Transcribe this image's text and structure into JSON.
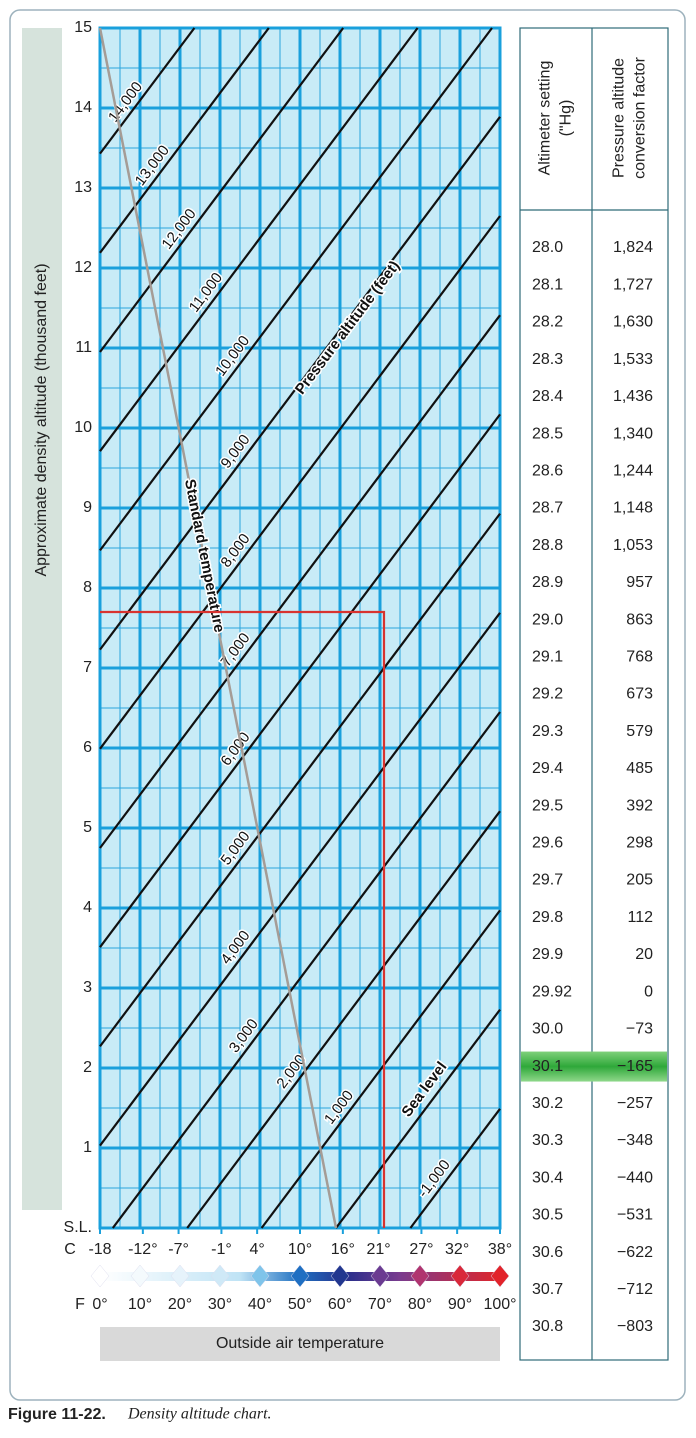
{
  "chart_data": {
    "type": "line",
    "ylabel": "Approximate density altitude (thousand feet)",
    "xlabel": "Outside air temperature",
    "x_unit": "F",
    "x2_unit": "C",
    "xlim": [
      0,
      100
    ],
    "xticks": [
      {
        "value": 0,
        "label": "0°"
      },
      {
        "value": 10,
        "label": "10°"
      },
      {
        "value": 20,
        "label": "20°"
      },
      {
        "value": 30,
        "label": "30°"
      },
      {
        "value": 40,
        "label": "40°"
      },
      {
        "value": 50,
        "label": "50°"
      },
      {
        "value": 60,
        "label": "60°"
      },
      {
        "value": 70,
        "label": "70°"
      },
      {
        "value": 80,
        "label": "80°"
      },
      {
        "value": 90,
        "label": "90°"
      },
      {
        "value": 100,
        "label": "100°"
      }
    ],
    "x2lim": [
      -18,
      38
    ],
    "x2ticks": [
      {
        "value": -18,
        "label": "-18"
      },
      {
        "value": -12,
        "label": "-12°"
      },
      {
        "value": -7,
        "label": "-7°"
      },
      {
        "value": -1,
        "label": "-1°"
      },
      {
        "value": 4,
        "label": "4°"
      },
      {
        "value": 10,
        "label": "10°"
      },
      {
        "value": 16,
        "label": "16°"
      },
      {
        "value": 21,
        "label": "21°"
      },
      {
        "value": 27,
        "label": "27°"
      },
      {
        "value": 32,
        "label": "32°"
      },
      {
        "value": 38,
        "label": "38°"
      }
    ],
    "ylim": [
      0,
      15
    ],
    "yticks": [
      {
        "value": 0,
        "label": "S.L."
      },
      1,
      2,
      3,
      4,
      5,
      6,
      7,
      8,
      9,
      10,
      11,
      12,
      13,
      14,
      15
    ],
    "grid": true,
    "annotations": [
      "Pressure altitude (feet)"
    ],
    "series": [
      {
        "name": "Sea level",
        "emphasis": true,
        "color": "#111111",
        "x": [
          59,
          100
        ],
        "values": [
          0,
          2.73
        ]
      },
      {
        "name": "-1,000",
        "color": "#111111",
        "x": [
          77.6,
          100
        ],
        "values": [
          0,
          1.49
        ]
      },
      {
        "name": "1,000",
        "color": "#111111",
        "x": [
          40.4,
          100
        ],
        "values": [
          0,
          3.97
        ]
      },
      {
        "name": "2,000",
        "color": "#111111",
        "x": [
          21.8,
          100
        ],
        "values": [
          0,
          5.21
        ]
      },
      {
        "name": "3,000",
        "color": "#111111",
        "x": [
          3.2,
          100
        ],
        "values": [
          0,
          6.45
        ]
      },
      {
        "name": "4,000",
        "color": "#111111",
        "x": [
          0,
          100
        ],
        "values": [
          1.03,
          7.69
        ]
      },
      {
        "name": "5,000",
        "color": "#111111",
        "x": [
          0,
          100
        ],
        "values": [
          2.27,
          8.93
        ]
      },
      {
        "name": "6,000",
        "color": "#111111",
        "x": [
          0,
          100
        ],
        "values": [
          3.51,
          10.17
        ]
      },
      {
        "name": "7,000",
        "color": "#111111",
        "x": [
          0,
          100
        ],
        "values": [
          4.75,
          11.41
        ]
      },
      {
        "name": "8,000",
        "color": "#111111",
        "x": [
          0,
          100
        ],
        "values": [
          5.99,
          12.65
        ]
      },
      {
        "name": "9,000",
        "color": "#111111",
        "x": [
          0,
          100
        ],
        "values": [
          7.23,
          13.89
        ]
      },
      {
        "name": "10,000",
        "color": "#111111",
        "x": [
          0,
          98
        ],
        "values": [
          8.47,
          15
        ]
      },
      {
        "name": "11,000",
        "color": "#111111",
        "x": [
          0,
          79.4
        ],
        "values": [
          9.71,
          15
        ]
      },
      {
        "name": "12,000",
        "color": "#111111",
        "x": [
          0,
          60.8
        ],
        "values": [
          10.95,
          15
        ]
      },
      {
        "name": "13,000",
        "color": "#111111",
        "x": [
          0,
          42.2
        ],
        "values": [
          12.19,
          15
        ]
      },
      {
        "name": "14,000",
        "color": "#111111",
        "x": [
          0,
          23.6
        ],
        "values": [
          13.43,
          15
        ]
      },
      {
        "name": "Standard temperature",
        "along": true,
        "color": "#a59c96",
        "x": [
          0,
          59
        ],
        "values": [
          15,
          0
        ]
      },
      {
        "color": "#d8332f",
        "x": [
          0,
          71,
          71
        ],
        "values": [
          7.7,
          7.7,
          0
        ]
      }
    ]
  },
  "table": {
    "headers": [
      [
        "Altimeter setting",
        "(\"Hg)"
      ],
      [
        "Pressure altitude",
        "conversion factor"
      ]
    ],
    "highlight_row": 22,
    "rows": [
      [
        "28.0",
        "1,824"
      ],
      [
        "28.1",
        "1,727"
      ],
      [
        "28.2",
        "1,630"
      ],
      [
        "28.3",
        "1,533"
      ],
      [
        "28.4",
        "1,436"
      ],
      [
        "28.5",
        "1,340"
      ],
      [
        "28.6",
        "1,244"
      ],
      [
        "28.7",
        "1,148"
      ],
      [
        "28.8",
        "1,053"
      ],
      [
        "28.9",
        "957"
      ],
      [
        "29.0",
        "863"
      ],
      [
        "29.1",
        "768"
      ],
      [
        "29.2",
        "673"
      ],
      [
        "29.3",
        "579"
      ],
      [
        "29.4",
        "485"
      ],
      [
        "29.5",
        "392"
      ],
      [
        "29.6",
        "298"
      ],
      [
        "29.7",
        "205"
      ],
      [
        "29.8",
        "112"
      ],
      [
        "29.9",
        "20"
      ],
      [
        "29.92",
        "0"
      ],
      [
        "30.0",
        "−73"
      ],
      [
        "30.1",
        "−165"
      ],
      [
        "30.2",
        "−257"
      ],
      [
        "30.3",
        "−348"
      ],
      [
        "30.4",
        "−440"
      ],
      [
        "30.5",
        "−531"
      ],
      [
        "30.6",
        "−622"
      ],
      [
        "30.7",
        "−712"
      ],
      [
        "30.8",
        "−803"
      ]
    ]
  },
  "caption": {
    "label": "Figure 11-22.",
    "text": "Density altitude chart."
  }
}
